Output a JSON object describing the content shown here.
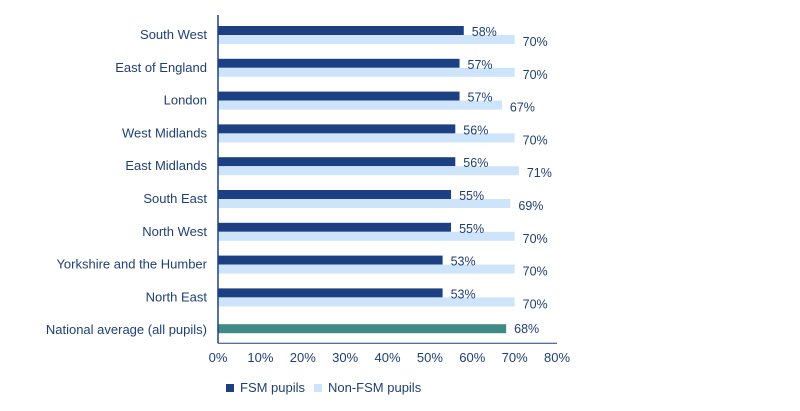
{
  "colors": {
    "fsm": "#1d4083",
    "non_fsm": "#cde4fb",
    "national": "#3f8a86",
    "axis": "#1d4083",
    "text": "#1f3f73"
  },
  "legend": {
    "fsm_label": "FSM pupils",
    "non_fsm_label": "Non-FSM pupils"
  },
  "chart_data": {
    "type": "bar",
    "orientation": "horizontal",
    "categories": [
      "South West",
      "East of England",
      "London",
      "West Midlands",
      "East Midlands",
      "South East",
      "North West",
      "Yorkshire and the Humber",
      "North East",
      "National average (all pupils)"
    ],
    "series": [
      {
        "name": "FSM pupils",
        "values": [
          58,
          57,
          57,
          56,
          56,
          55,
          55,
          53,
          53,
          null
        ]
      },
      {
        "name": "Non-FSM pupils",
        "values": [
          70,
          70,
          67,
          70,
          71,
          69,
          70,
          70,
          70,
          null
        ]
      }
    ],
    "national_average": {
      "category": "National average (all pupils)",
      "value": 68
    },
    "value_labels": {
      "fsm": [
        "58%",
        "57%",
        "57%",
        "56%",
        "56%",
        "55%",
        "55%",
        "53%",
        "53%"
      ],
      "non_fsm": [
        "70%",
        "70%",
        "67%",
        "70%",
        "71%",
        "69%",
        "70%",
        "70%",
        "70%"
      ],
      "national": "68%"
    },
    "x_ticks": [
      "0%",
      "10%",
      "20%",
      "30%",
      "40%",
      "50%",
      "60%",
      "70%",
      "80%"
    ],
    "xlim": [
      0,
      80
    ],
    "legend_position": "bottom-center",
    "grid": false
  }
}
